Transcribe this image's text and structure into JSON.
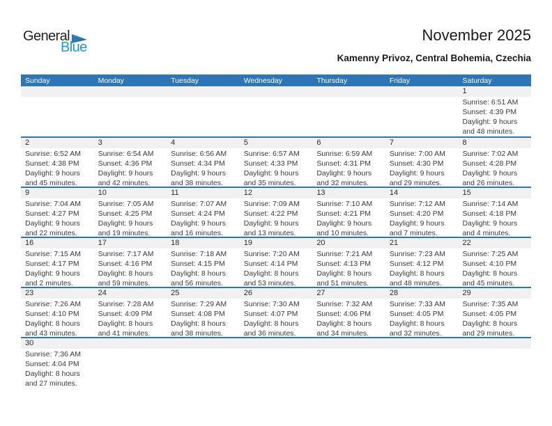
{
  "logo": {
    "part1": "General",
    "part2": "Blue"
  },
  "header": {
    "title": "November 2025",
    "subtitle": "Kamenny Privoz, Central Bohemia, Czechia"
  },
  "weekday_headers": [
    "Sunday",
    "Monday",
    "Tuesday",
    "Wednesday",
    "Thursday",
    "Friday",
    "Saturday"
  ],
  "colors": {
    "header_bg": "#2e75b6",
    "separator": "#2e75b6",
    "band_bg": "#f1f1f1",
    "logo_blue": "#2097d4",
    "logo_dark": "#231f20"
  },
  "weeks": [
    [
      null,
      null,
      null,
      null,
      null,
      null,
      {
        "day": "1",
        "lines": [
          "Sunrise: 6:51 AM",
          "Sunset: 4:39 PM",
          "Daylight: 9 hours",
          "and 48 minutes."
        ]
      }
    ],
    [
      {
        "day": "2",
        "lines": [
          "Sunrise: 6:52 AM",
          "Sunset: 4:38 PM",
          "Daylight: 9 hours",
          "and 45 minutes."
        ]
      },
      {
        "day": "3",
        "lines": [
          "Sunrise: 6:54 AM",
          "Sunset: 4:36 PM",
          "Daylight: 9 hours",
          "and 42 minutes."
        ]
      },
      {
        "day": "4",
        "lines": [
          "Sunrise: 6:56 AM",
          "Sunset: 4:34 PM",
          "Daylight: 9 hours",
          "and 38 minutes."
        ]
      },
      {
        "day": "5",
        "lines": [
          "Sunrise: 6:57 AM",
          "Sunset: 4:33 PM",
          "Daylight: 9 hours",
          "and 35 minutes."
        ]
      },
      {
        "day": "6",
        "lines": [
          "Sunrise: 6:59 AM",
          "Sunset: 4:31 PM",
          "Daylight: 9 hours",
          "and 32 minutes."
        ]
      },
      {
        "day": "7",
        "lines": [
          "Sunrise: 7:00 AM",
          "Sunset: 4:30 PM",
          "Daylight: 9 hours",
          "and 29 minutes."
        ]
      },
      {
        "day": "8",
        "lines": [
          "Sunrise: 7:02 AM",
          "Sunset: 4:28 PM",
          "Daylight: 9 hours",
          "and 26 minutes."
        ]
      }
    ],
    [
      {
        "day": "9",
        "lines": [
          "Sunrise: 7:04 AM",
          "Sunset: 4:27 PM",
          "Daylight: 9 hours",
          "and 22 minutes."
        ]
      },
      {
        "day": "10",
        "lines": [
          "Sunrise: 7:05 AM",
          "Sunset: 4:25 PM",
          "Daylight: 9 hours",
          "and 19 minutes."
        ]
      },
      {
        "day": "11",
        "lines": [
          "Sunrise: 7:07 AM",
          "Sunset: 4:24 PM",
          "Daylight: 9 hours",
          "and 16 minutes."
        ]
      },
      {
        "day": "12",
        "lines": [
          "Sunrise: 7:09 AM",
          "Sunset: 4:22 PM",
          "Daylight: 9 hours",
          "and 13 minutes."
        ]
      },
      {
        "day": "13",
        "lines": [
          "Sunrise: 7:10 AM",
          "Sunset: 4:21 PM",
          "Daylight: 9 hours",
          "and 10 minutes."
        ]
      },
      {
        "day": "14",
        "lines": [
          "Sunrise: 7:12 AM",
          "Sunset: 4:20 PM",
          "Daylight: 9 hours",
          "and 7 minutes."
        ]
      },
      {
        "day": "15",
        "lines": [
          "Sunrise: 7:14 AM",
          "Sunset: 4:18 PM",
          "Daylight: 9 hours",
          "and 4 minutes."
        ]
      }
    ],
    [
      {
        "day": "16",
        "lines": [
          "Sunrise: 7:15 AM",
          "Sunset: 4:17 PM",
          "Daylight: 9 hours",
          "and 2 minutes."
        ]
      },
      {
        "day": "17",
        "lines": [
          "Sunrise: 7:17 AM",
          "Sunset: 4:16 PM",
          "Daylight: 8 hours",
          "and 59 minutes."
        ]
      },
      {
        "day": "18",
        "lines": [
          "Sunrise: 7:18 AM",
          "Sunset: 4:15 PM",
          "Daylight: 8 hours",
          "and 56 minutes."
        ]
      },
      {
        "day": "19",
        "lines": [
          "Sunrise: 7:20 AM",
          "Sunset: 4:14 PM",
          "Daylight: 8 hours",
          "and 53 minutes."
        ]
      },
      {
        "day": "20",
        "lines": [
          "Sunrise: 7:21 AM",
          "Sunset: 4:13 PM",
          "Daylight: 8 hours",
          "and 51 minutes."
        ]
      },
      {
        "day": "21",
        "lines": [
          "Sunrise: 7:23 AM",
          "Sunset: 4:12 PM",
          "Daylight: 8 hours",
          "and 48 minutes."
        ]
      },
      {
        "day": "22",
        "lines": [
          "Sunrise: 7:25 AM",
          "Sunset: 4:10 PM",
          "Daylight: 8 hours",
          "and 45 minutes."
        ]
      }
    ],
    [
      {
        "day": "23",
        "lines": [
          "Sunrise: 7:26 AM",
          "Sunset: 4:10 PM",
          "Daylight: 8 hours",
          "and 43 minutes."
        ]
      },
      {
        "day": "24",
        "lines": [
          "Sunrise: 7:28 AM",
          "Sunset: 4:09 PM",
          "Daylight: 8 hours",
          "and 41 minutes."
        ]
      },
      {
        "day": "25",
        "lines": [
          "Sunrise: 7:29 AM",
          "Sunset: 4:08 PM",
          "Daylight: 8 hours",
          "and 38 minutes."
        ]
      },
      {
        "day": "26",
        "lines": [
          "Sunrise: 7:30 AM",
          "Sunset: 4:07 PM",
          "Daylight: 8 hours",
          "and 36 minutes."
        ]
      },
      {
        "day": "27",
        "lines": [
          "Sunrise: 7:32 AM",
          "Sunset: 4:06 PM",
          "Daylight: 8 hours",
          "and 34 minutes."
        ]
      },
      {
        "day": "28",
        "lines": [
          "Sunrise: 7:33 AM",
          "Sunset: 4:05 PM",
          "Daylight: 8 hours",
          "and 32 minutes."
        ]
      },
      {
        "day": "29",
        "lines": [
          "Sunrise: 7:35 AM",
          "Sunset: 4:05 PM",
          "Daylight: 8 hours",
          "and 29 minutes."
        ]
      }
    ],
    [
      {
        "day": "30",
        "lines": [
          "Sunrise: 7:36 AM",
          "Sunset: 4:04 PM",
          "Daylight: 8 hours",
          "and 27 minutes."
        ]
      },
      null,
      null,
      null,
      null,
      null,
      null
    ]
  ]
}
